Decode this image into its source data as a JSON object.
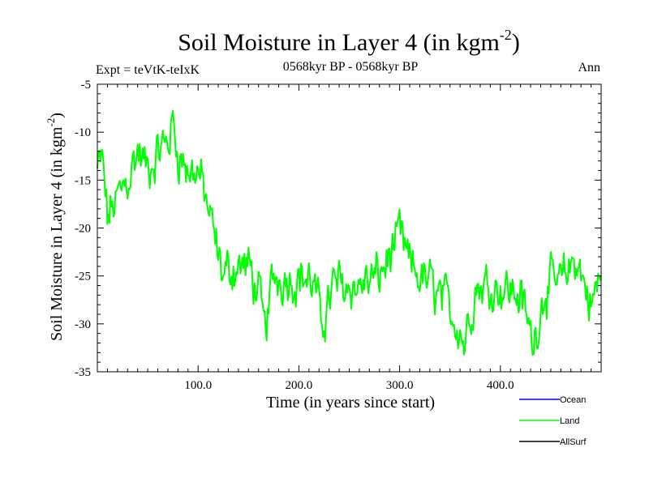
{
  "chart_data": {
    "type": "line",
    "title": "Soil Moisture in Layer 4 (in kgm",
    "title_sup": "-2",
    "title_close": ")",
    "subtitle_left": "Expt = teVtK-teIxK",
    "subtitle_center": "0568kyr BP - 0568kyr BP",
    "subtitle_right": "Ann",
    "xlabel": "Time (in years since start)",
    "ylabel": "Soil Moisture in Layer 4 (in kgm",
    "ylabel_sup": "-2",
    "ylabel_close": ")",
    "xlim": [
      0,
      500
    ],
    "ylim": [
      -35,
      -5
    ],
    "xticks": [
      100,
      200,
      300,
      400
    ],
    "xtick_labels": [
      "100.0",
      "200.0",
      "300.0",
      "400.0"
    ],
    "yticks": [
      -35,
      -30,
      -25,
      -20,
      -15,
      -10,
      -5
    ],
    "ytick_labels": [
      "-35",
      "-30",
      "-25",
      "-20",
      "-15",
      "-10",
      "-5"
    ],
    "legend_position": "bottom-right",
    "series": [
      {
        "name": "Ocean",
        "color": "#0000ff",
        "values": []
      },
      {
        "name": "Land",
        "color": "#00ff00",
        "noise": 1.8,
        "anchors": [
          [
            0,
            -14
          ],
          [
            5,
            -13
          ],
          [
            10,
            -19
          ],
          [
            20,
            -17
          ],
          [
            30,
            -15
          ],
          [
            40,
            -12
          ],
          [
            50,
            -14
          ],
          [
            60,
            -12
          ],
          [
            70,
            -11
          ],
          [
            75,
            -9
          ],
          [
            80,
            -12
          ],
          [
            90,
            -14
          ],
          [
            100,
            -14
          ],
          [
            110,
            -18
          ],
          [
            118,
            -22
          ],
          [
            125,
            -25
          ],
          [
            135,
            -24
          ],
          [
            150,
            -24
          ],
          [
            160,
            -27
          ],
          [
            166,
            -31
          ],
          [
            175,
            -25
          ],
          [
            190,
            -25
          ],
          [
            205,
            -25
          ],
          [
            215,
            -26
          ],
          [
            222,
            -30
          ],
          [
            235,
            -26
          ],
          [
            260,
            -26
          ],
          [
            280,
            -25
          ],
          [
            300,
            -21
          ],
          [
            310,
            -24
          ],
          [
            330,
            -26
          ],
          [
            345,
            -28
          ],
          [
            360,
            -30
          ],
          [
            364,
            -32
          ],
          [
            375,
            -26
          ],
          [
            400,
            -26
          ],
          [
            420,
            -27
          ],
          [
            432,
            -32
          ],
          [
            445,
            -26
          ],
          [
            460,
            -26
          ],
          [
            475,
            -23
          ],
          [
            490,
            -28
          ],
          [
            500,
            -25
          ]
        ]
      },
      {
        "name": "AllSurf",
        "color": "#000000",
        "values": []
      }
    ]
  }
}
